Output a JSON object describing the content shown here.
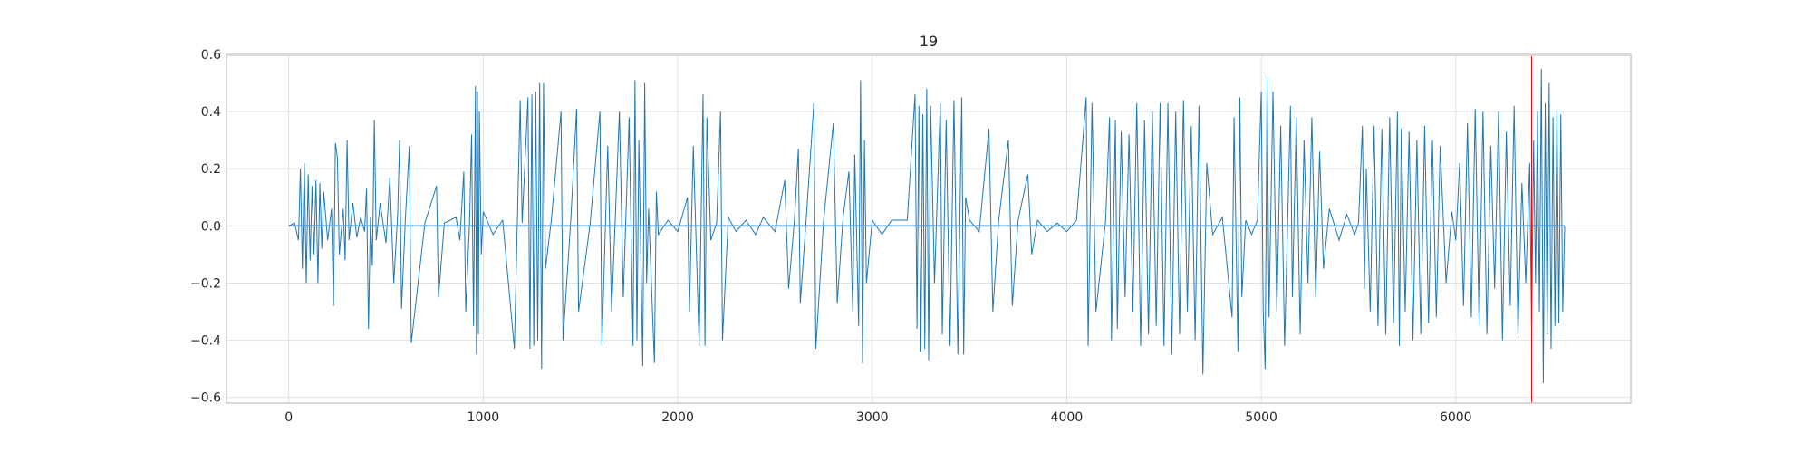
{
  "chart_data": {
    "type": "line",
    "title": "19",
    "xlabel": "",
    "ylabel": "",
    "xlim": [
      -320,
      6900
    ],
    "ylim": [
      -0.62,
      0.6
    ],
    "x_ticks": [
      0,
      1000,
      2000,
      3000,
      4000,
      5000,
      6000
    ],
    "x_tick_labels": [
      "0",
      "1000",
      "2000",
      "3000",
      "4000",
      "5000",
      "6000"
    ],
    "y_ticks": [
      0.6,
      0.4,
      0.2,
      0.0,
      -0.2,
      -0.4,
      -0.6
    ],
    "y_tick_labels": [
      "0.6",
      "0.4",
      "0.2",
      "0.0",
      "−0.2",
      "−0.4",
      "−0.6"
    ],
    "grid": true,
    "series": [
      {
        "color": "#1f77b4",
        "x_range": [
          0,
          6560
        ],
        "points": [
          [
            0,
            0
          ],
          [
            30,
            0.01
          ],
          [
            50,
            -0.05
          ],
          [
            60,
            0.2
          ],
          [
            70,
            -0.15
          ],
          [
            80,
            0.22
          ],
          [
            90,
            -0.2
          ],
          [
            100,
            0.18
          ],
          [
            110,
            -0.12
          ],
          [
            120,
            0.14
          ],
          [
            130,
            -0.1
          ],
          [
            140,
            0.16
          ],
          [
            150,
            -0.2
          ],
          [
            160,
            0.15
          ],
          [
            170,
            -0.08
          ],
          [
            180,
            0.12
          ],
          [
            200,
            -0.05
          ],
          [
            220,
            0.06
          ],
          [
            230,
            -0.28
          ],
          [
            240,
            0.29
          ],
          [
            250,
            0.24
          ],
          [
            260,
            -0.1
          ],
          [
            280,
            0.06
          ],
          [
            290,
            -0.12
          ],
          [
            300,
            0.3
          ],
          [
            310,
            -0.05
          ],
          [
            330,
            0.08
          ],
          [
            350,
            -0.04
          ],
          [
            370,
            0.03
          ],
          [
            390,
            -0.02
          ],
          [
            400,
            0.13
          ],
          [
            410,
            -0.36
          ],
          [
            420,
            0.03
          ],
          [
            430,
            -0.14
          ],
          [
            440,
            0.37
          ],
          [
            450,
            -0.05
          ],
          [
            470,
            0.08
          ],
          [
            500,
            -0.06
          ],
          [
            520,
            0.17
          ],
          [
            540,
            -0.2
          ],
          [
            560,
            0.04
          ],
          [
            570,
            0.3
          ],
          [
            580,
            -0.29
          ],
          [
            600,
            0.03
          ],
          [
            620,
            0.28
          ],
          [
            630,
            -0.41
          ],
          [
            700,
            0.01
          ],
          [
            760,
            0.14
          ],
          [
            770,
            -0.25
          ],
          [
            800,
            0.01
          ],
          [
            860,
            0.03
          ],
          [
            880,
            -0.05
          ],
          [
            900,
            0.19
          ],
          [
            910,
            -0.3
          ],
          [
            930,
            0.02
          ],
          [
            940,
            0.32
          ],
          [
            950,
            -0.35
          ],
          [
            960,
            0.49
          ],
          [
            965,
            -0.45
          ],
          [
            970,
            0.47
          ],
          [
            975,
            -0.38
          ],
          [
            980,
            0.4
          ],
          [
            990,
            -0.1
          ],
          [
            1000,
            0.05
          ],
          [
            1050,
            -0.03
          ],
          [
            1100,
            0.02
          ],
          [
            1160,
            -0.43
          ],
          [
            1190,
            0.44
          ],
          [
            1200,
            0.01
          ],
          [
            1230,
            0.45
          ],
          [
            1240,
            -0.43
          ],
          [
            1250,
            0.46
          ],
          [
            1260,
            -0.42
          ],
          [
            1270,
            0.47
          ],
          [
            1280,
            -0.4
          ],
          [
            1290,
            0.5
          ],
          [
            1300,
            -0.5
          ],
          [
            1310,
            0.5
          ],
          [
            1320,
            -0.15
          ],
          [
            1350,
            0.02
          ],
          [
            1400,
            0.4
          ],
          [
            1410,
            -0.4
          ],
          [
            1450,
            0.02
          ],
          [
            1480,
            0.41
          ],
          [
            1490,
            -0.3
          ],
          [
            1550,
            0.01
          ],
          [
            1600,
            0.4
          ],
          [
            1610,
            -0.42
          ],
          [
            1640,
            0.28
          ],
          [
            1660,
            -0.3
          ],
          [
            1700,
            0.4
          ],
          [
            1720,
            -0.25
          ],
          [
            1750,
            0.38
          ],
          [
            1770,
            -0.42
          ],
          [
            1780,
            0.51
          ],
          [
            1790,
            -0.4
          ],
          [
            1800,
            0.3
          ],
          [
            1820,
            -0.49
          ],
          [
            1830,
            0.5
          ],
          [
            1840,
            -0.2
          ],
          [
            1850,
            0.06
          ],
          [
            1880,
            -0.48
          ],
          [
            1890,
            0.12
          ],
          [
            1900,
            -0.03
          ],
          [
            1950,
            0.02
          ],
          [
            2000,
            -0.02
          ],
          [
            2050,
            0.1
          ],
          [
            2060,
            -0.3
          ],
          [
            2080,
            0.28
          ],
          [
            2110,
            -0.42
          ],
          [
            2130,
            0.46
          ],
          [
            2140,
            -0.42
          ],
          [
            2150,
            0.38
          ],
          [
            2170,
            -0.05
          ],
          [
            2200,
            0.01
          ],
          [
            2220,
            0.4
          ],
          [
            2230,
            -0.4
          ],
          [
            2260,
            0.03
          ],
          [
            2300,
            -0.02
          ],
          [
            2350,
            0.02
          ],
          [
            2400,
            -0.03
          ],
          [
            2440,
            0.03
          ],
          [
            2500,
            -0.02
          ],
          [
            2550,
            0.16
          ],
          [
            2570,
            -0.22
          ],
          [
            2600,
            0.02
          ],
          [
            2620,
            0.27
          ],
          [
            2630,
            -0.27
          ],
          [
            2660,
            0.02
          ],
          [
            2700,
            0.43
          ],
          [
            2710,
            -0.43
          ],
          [
            2750,
            0.02
          ],
          [
            2800,
            0.36
          ],
          [
            2820,
            -0.27
          ],
          [
            2850,
            0.03
          ],
          [
            2880,
            0.19
          ],
          [
            2900,
            -0.3
          ],
          [
            2910,
            0.25
          ],
          [
            2930,
            -0.35
          ],
          [
            2940,
            0.51
          ],
          [
            2950,
            -0.48
          ],
          [
            2960,
            0.3
          ],
          [
            2970,
            -0.2
          ],
          [
            3000,
            0.02
          ],
          [
            3050,
            -0.03
          ],
          [
            3100,
            0.02
          ],
          [
            3150,
            0.02
          ],
          [
            3180,
            0.02
          ],
          [
            3220,
            0.46
          ],
          [
            3230,
            -0.36
          ],
          [
            3240,
            0.42
          ],
          [
            3250,
            -0.44
          ],
          [
            3260,
            0.39
          ],
          [
            3270,
            -0.43
          ],
          [
            3280,
            0.48
          ],
          [
            3290,
            -0.47
          ],
          [
            3300,
            0.42
          ],
          [
            3320,
            -0.2
          ],
          [
            3350,
            0.43
          ],
          [
            3360,
            -0.38
          ],
          [
            3380,
            0.37
          ],
          [
            3400,
            -0.42
          ],
          [
            3420,
            0.44
          ],
          [
            3440,
            -0.45
          ],
          [
            3460,
            0.45
          ],
          [
            3470,
            -0.45
          ],
          [
            3480,
            0.1
          ],
          [
            3500,
            0.02
          ],
          [
            3550,
            -0.02
          ],
          [
            3600,
            0.34
          ],
          [
            3620,
            -0.3
          ],
          [
            3650,
            0.02
          ],
          [
            3700,
            0.3
          ],
          [
            3720,
            -0.28
          ],
          [
            3750,
            0.02
          ],
          [
            3800,
            0.18
          ],
          [
            3820,
            -0.1
          ],
          [
            3850,
            0.02
          ],
          [
            3900,
            -0.02
          ],
          [
            3950,
            0.01
          ],
          [
            4000,
            -0.02
          ],
          [
            4050,
            0.02
          ],
          [
            4100,
            0.45
          ],
          [
            4110,
            -0.42
          ],
          [
            4130,
            0.43
          ],
          [
            4150,
            -0.3
          ],
          [
            4200,
            0.02
          ],
          [
            4220,
            0.38
          ],
          [
            4230,
            -0.4
          ],
          [
            4250,
            0.37
          ],
          [
            4260,
            -0.36
          ],
          [
            4280,
            0.33
          ],
          [
            4300,
            -0.25
          ],
          [
            4320,
            0.32
          ],
          [
            4340,
            -0.3
          ],
          [
            4360,
            0.43
          ],
          [
            4380,
            -0.42
          ],
          [
            4400,
            0.37
          ],
          [
            4420,
            -0.38
          ],
          [
            4440,
            0.4
          ],
          [
            4460,
            -0.35
          ],
          [
            4480,
            0.43
          ],
          [
            4500,
            -0.42
          ],
          [
            4520,
            0.43
          ],
          [
            4540,
            -0.45
          ],
          [
            4560,
            0.4
          ],
          [
            4580,
            -0.38
          ],
          [
            4600,
            0.44
          ],
          [
            4620,
            -0.3
          ],
          [
            4640,
            0.35
          ],
          [
            4660,
            -0.4
          ],
          [
            4680,
            0.42
          ],
          [
            4700,
            -0.52
          ],
          [
            4720,
            0.22
          ],
          [
            4750,
            -0.03
          ],
          [
            4800,
            0.03
          ],
          [
            4850,
            -0.32
          ],
          [
            4860,
            0.38
          ],
          [
            4880,
            -0.44
          ],
          [
            4890,
            0.45
          ],
          [
            4900,
            -0.25
          ],
          [
            4920,
            0.02
          ],
          [
            4950,
            -0.03
          ],
          [
            4980,
            0.02
          ],
          [
            5000,
            0.47
          ],
          [
            5010,
            -0.3
          ],
          [
            5020,
            -0.5
          ],
          [
            5030,
            0.52
          ],
          [
            5040,
            -0.32
          ],
          [
            5060,
            0.47
          ],
          [
            5080,
            -0.3
          ],
          [
            5100,
            0.35
          ],
          [
            5120,
            -0.42
          ],
          [
            5150,
            0.42
          ],
          [
            5160,
            -0.25
          ],
          [
            5180,
            0.38
          ],
          [
            5200,
            -0.38
          ],
          [
            5220,
            0.3
          ],
          [
            5240,
            -0.2
          ],
          [
            5260,
            0.38
          ],
          [
            5280,
            -0.25
          ],
          [
            5300,
            0.26
          ],
          [
            5320,
            -0.15
          ],
          [
            5350,
            0.06
          ],
          [
            5400,
            -0.05
          ],
          [
            5440,
            0.04
          ],
          [
            5480,
            -0.03
          ],
          [
            5500,
            0.01
          ],
          [
            5520,
            0.35
          ],
          [
            5530,
            -0.22
          ],
          [
            5540,
            0.2
          ],
          [
            5560,
            -0.3
          ],
          [
            5580,
            0.35
          ],
          [
            5600,
            -0.35
          ],
          [
            5620,
            0.34
          ],
          [
            5640,
            -0.38
          ],
          [
            5660,
            0.38
          ],
          [
            5680,
            -0.34
          ],
          [
            5700,
            0.4
          ],
          [
            5710,
            -0.42
          ],
          [
            5720,
            0.34
          ],
          [
            5740,
            -0.3
          ],
          [
            5760,
            0.33
          ],
          [
            5780,
            -0.4
          ],
          [
            5800,
            0.3
          ],
          [
            5820,
            -0.38
          ],
          [
            5840,
            0.35
          ],
          [
            5860,
            -0.34
          ],
          [
            5880,
            0.3
          ],
          [
            5900,
            -0.32
          ],
          [
            5920,
            0.28
          ],
          [
            5950,
            -0.2
          ],
          [
            5980,
            0.05
          ],
          [
            6000,
            -0.05
          ],
          [
            6020,
            0.22
          ],
          [
            6040,
            -0.28
          ],
          [
            6060,
            0.36
          ],
          [
            6080,
            -0.32
          ],
          [
            6100,
            0.41
          ],
          [
            6120,
            -0.35
          ],
          [
            6140,
            0.4
          ],
          [
            6160,
            -0.38
          ],
          [
            6180,
            0.28
          ],
          [
            6200,
            -0.22
          ],
          [
            6220,
            0.4
          ],
          [
            6240,
            -0.4
          ],
          [
            6260,
            0.33
          ],
          [
            6280,
            -0.28
          ],
          [
            6300,
            0.42
          ],
          [
            6320,
            -0.38
          ],
          [
            6340,
            0.15
          ],
          [
            6360,
            -0.2
          ],
          [
            6380,
            0.22
          ],
          [
            6390,
            -0.37
          ],
          [
            6400,
            0.3
          ],
          [
            6410,
            -0.2
          ],
          [
            6420,
            0.4
          ],
          [
            6430,
            -0.3
          ],
          [
            6440,
            0.55
          ],
          [
            6450,
            -0.55
          ],
          [
            6460,
            0.43
          ],
          [
            6470,
            -0.38
          ],
          [
            6480,
            0.5
          ],
          [
            6490,
            -0.43
          ],
          [
            6500,
            0.38
          ],
          [
            6510,
            -0.35
          ],
          [
            6520,
            0.41
          ],
          [
            6530,
            -0.34
          ],
          [
            6540,
            0.39
          ],
          [
            6550,
            -0.3
          ],
          [
            6560,
            0.0
          ]
        ]
      }
    ],
    "vline": {
      "x": 6390,
      "color": "#ff0000"
    }
  }
}
